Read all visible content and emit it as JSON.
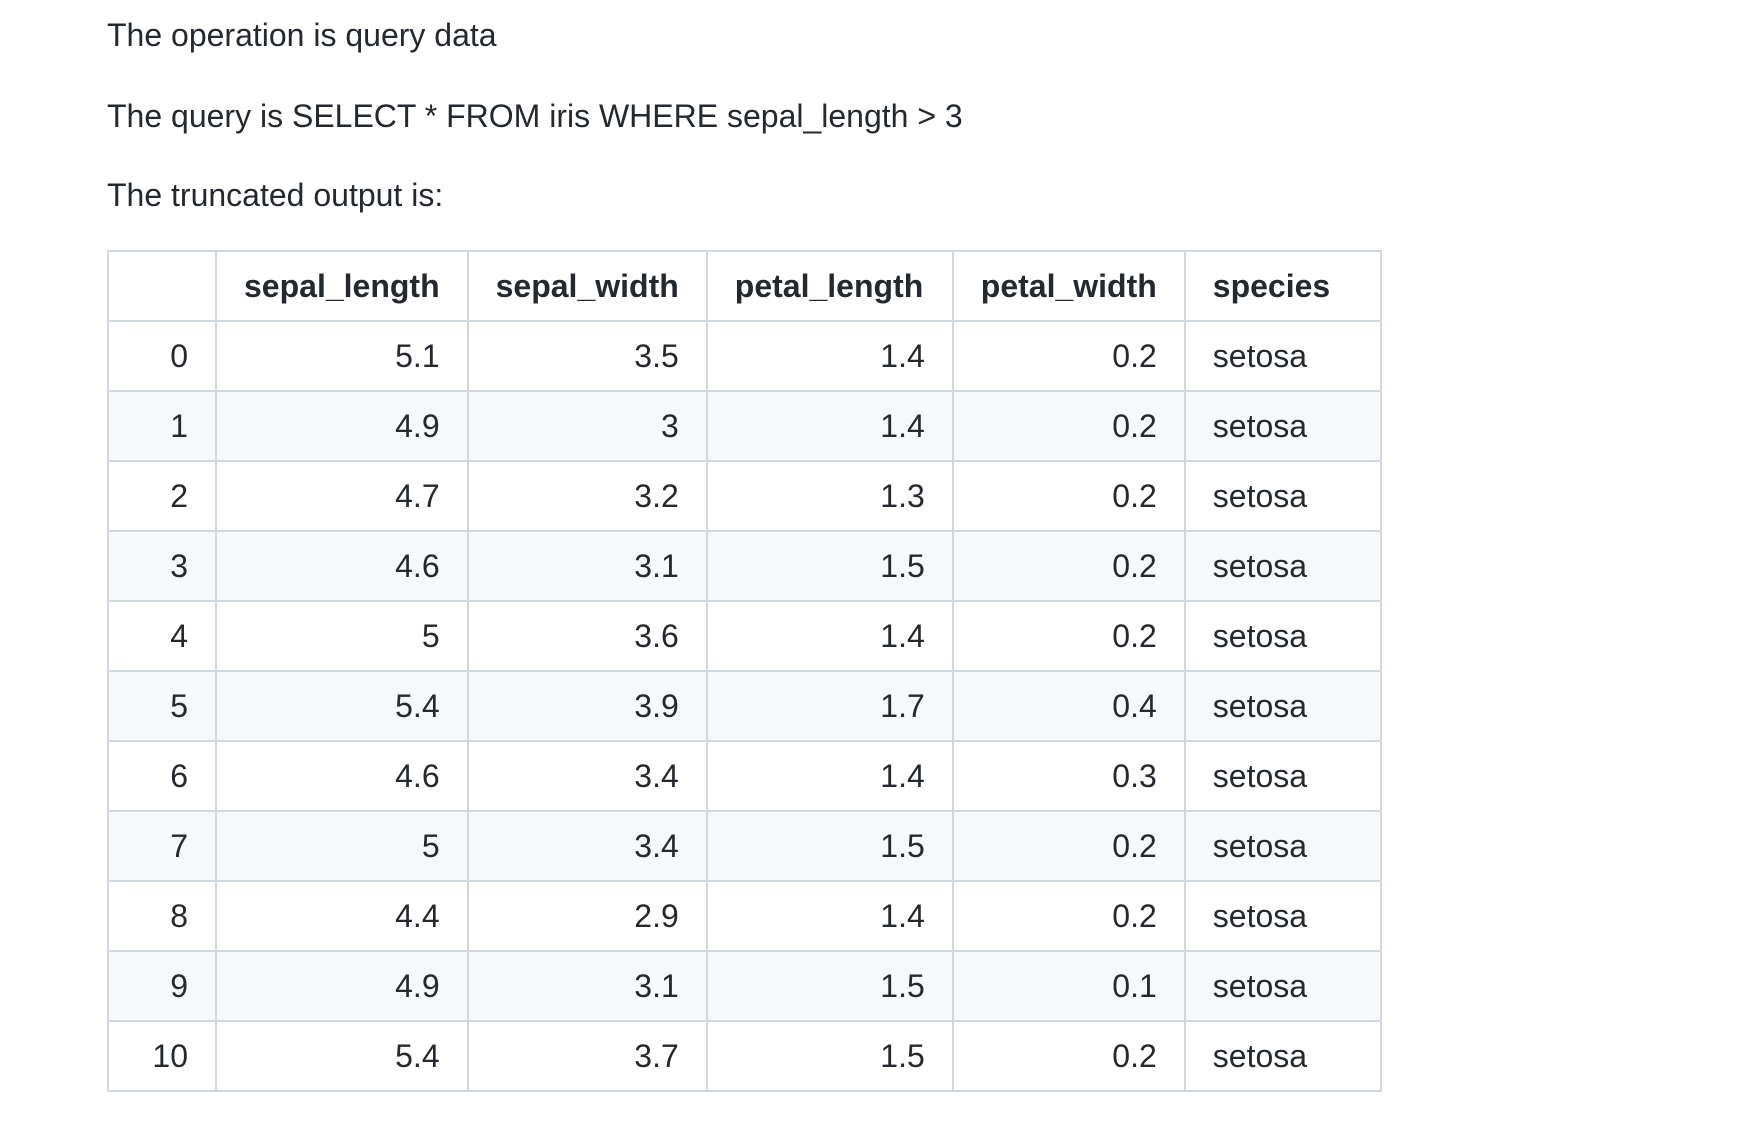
{
  "intro": {
    "operation": "The operation is query data",
    "query": "The query is SELECT * FROM iris WHERE sepal_length > 3",
    "output_label": "The truncated output is:"
  },
  "table": {
    "columns": [
      "",
      "sepal_length",
      "sepal_width",
      "petal_length",
      "petal_width",
      "species"
    ],
    "rows": [
      [
        "0",
        "5.1",
        "3.5",
        "1.4",
        "0.2",
        "setosa"
      ],
      [
        "1",
        "4.9",
        "3",
        "1.4",
        "0.2",
        "setosa"
      ],
      [
        "2",
        "4.7",
        "3.2",
        "1.3",
        "0.2",
        "setosa"
      ],
      [
        "3",
        "4.6",
        "3.1",
        "1.5",
        "0.2",
        "setosa"
      ],
      [
        "4",
        "5",
        "3.6",
        "1.4",
        "0.2",
        "setosa"
      ],
      [
        "5",
        "5.4",
        "3.9",
        "1.7",
        "0.4",
        "setosa"
      ],
      [
        "6",
        "4.6",
        "3.4",
        "1.4",
        "0.3",
        "setosa"
      ],
      [
        "7",
        "5",
        "3.4",
        "1.5",
        "0.2",
        "setosa"
      ],
      [
        "8",
        "4.4",
        "2.9",
        "1.4",
        "0.2",
        "setosa"
      ],
      [
        "9",
        "4.9",
        "3.1",
        "1.5",
        "0.1",
        "setosa"
      ],
      [
        "10",
        "5.4",
        "3.7",
        "1.5",
        "0.2",
        "setosa"
      ]
    ]
  }
}
